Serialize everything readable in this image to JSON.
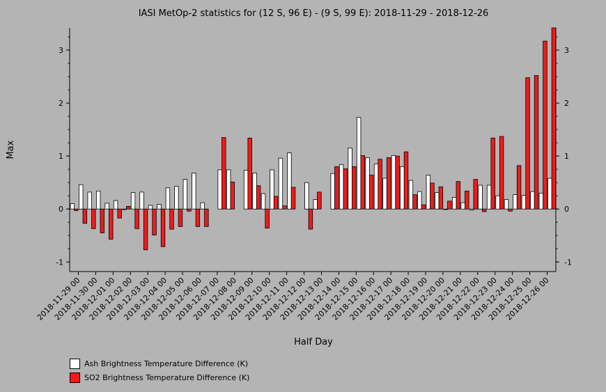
{
  "chart_data": {
    "type": "bar",
    "title": "IASI MetOp-2 statistics for (12 S, 96 E) - (9 S, 99 E): 2018-11-29 - 2018-12-26",
    "xlabel": "Half Day",
    "ylabel": "Max",
    "ylim": [
      -1.18,
      3.42
    ],
    "yticks": [
      -1,
      0,
      1,
      2,
      3
    ],
    "grid": false,
    "legend_position": "bottom-left",
    "categories": [
      "2018-11-29 00",
      "2018-11-29 12",
      "2018-11-30 00",
      "2018-11-30 12",
      "2018-12-01 00",
      "2018-12-01 12",
      "2018-12-02 00",
      "2018-12-02 12",
      "2018-12-03 00",
      "2018-12-03 12",
      "2018-12-04 00",
      "2018-12-04 12",
      "2018-12-05 00",
      "2018-12-05 12",
      "2018-12-06 00",
      "2018-12-06 12",
      "2018-12-07 00",
      "2018-12-07 12",
      "2018-12-08 00",
      "2018-12-08 12",
      "2018-12-09 00",
      "2018-12-09 12",
      "2018-12-10 00",
      "2018-12-10 12",
      "2018-12-11 00",
      "2018-12-11 12",
      "2018-12-12 00",
      "2018-12-12 12",
      "2018-12-13 00",
      "2018-12-13 12",
      "2018-12-14 00",
      "2018-12-14 12",
      "2018-12-15 00",
      "2018-12-15 12",
      "2018-12-16 00",
      "2018-12-16 12",
      "2018-12-17 00",
      "2018-12-17 12",
      "2018-12-18 00",
      "2018-12-18 12",
      "2018-12-19 00",
      "2018-12-19 12",
      "2018-12-20 00",
      "2018-12-20 12",
      "2018-12-21 00",
      "2018-12-21 12",
      "2018-12-22 00",
      "2018-12-22 12",
      "2018-12-23 00",
      "2018-12-23 12",
      "2018-12-24 00",
      "2018-12-24 12",
      "2018-12-25 00",
      "2018-12-25 12",
      "2018-12-26 00",
      "2018-12-26 12"
    ],
    "tick_labels": [
      "2018-11-29 00",
      "2018-11-30 00",
      "2018-12-01 00",
      "2018-12-02 00",
      "2018-12-03 00",
      "2018-12-04 00",
      "2018-12-05 00",
      "2018-12-06 00",
      "2018-12-07 00",
      "2018-12-08 00",
      "2018-12-09 00",
      "2018-12-10 00",
      "2018-12-11 00",
      "2018-12-12 00",
      "2018-12-13 00",
      "2018-12-14 00",
      "2018-12-15 00",
      "2018-12-16 00",
      "2018-12-17 00",
      "2018-12-18 00",
      "2018-12-19 00",
      "2018-12-20 00",
      "2018-12-21 00",
      "2018-12-22 00",
      "2018-12-23 00",
      "2018-12-24 00",
      "2018-12-25 00",
      "2018-12-26 00"
    ],
    "series": [
      {
        "name": "Ash Brightness Temperature Difference (K)",
        "color": "#ffffff",
        "values": [
          0.1,
          0.46,
          0.32,
          0.34,
          0.11,
          0.16,
          -0.01,
          0.31,
          0.32,
          0.07,
          0.09,
          0.4,
          0.43,
          0.56,
          0.68,
          0.12,
          null,
          0.74,
          0.74,
          null,
          0.73,
          0.68,
          0.29,
          0.74,
          0.96,
          1.06,
          null,
          0.5,
          0.18,
          null,
          0.67,
          0.84,
          1.15,
          1.73,
          0.97,
          0.85,
          0.58,
          1.01,
          0.8,
          0.54,
          0.33,
          0.64,
          0.31,
          -0.01,
          0.22,
          0.12,
          -0.02,
          0.45,
          0.45,
          0.25,
          0.18,
          0.27,
          0.26,
          0.33,
          0.3,
          0.58
        ]
      },
      {
        "name": "SO2 Brightness Temperature Difference (K)",
        "color": "#ee1c1c",
        "values": [
          -0.03,
          -0.27,
          -0.37,
          -0.45,
          -0.57,
          -0.17,
          0.05,
          -0.37,
          -0.77,
          -0.49,
          -0.71,
          -0.38,
          -0.33,
          -0.04,
          -0.33,
          -0.33,
          null,
          1.35,
          0.51,
          null,
          1.34,
          0.44,
          -0.36,
          0.24,
          0.06,
          0.41,
          null,
          -0.38,
          0.32,
          null,
          0.8,
          0.76,
          0.8,
          1.01,
          0.64,
          0.94,
          0.97,
          1.0,
          1.08,
          0.27,
          0.08,
          0.49,
          0.42,
          0.15,
          0.52,
          0.34,
          0.56,
          -0.05,
          1.34,
          1.37,
          -0.04,
          0.82,
          2.48,
          2.52,
          3.17,
          3.42
        ]
      }
    ]
  }
}
